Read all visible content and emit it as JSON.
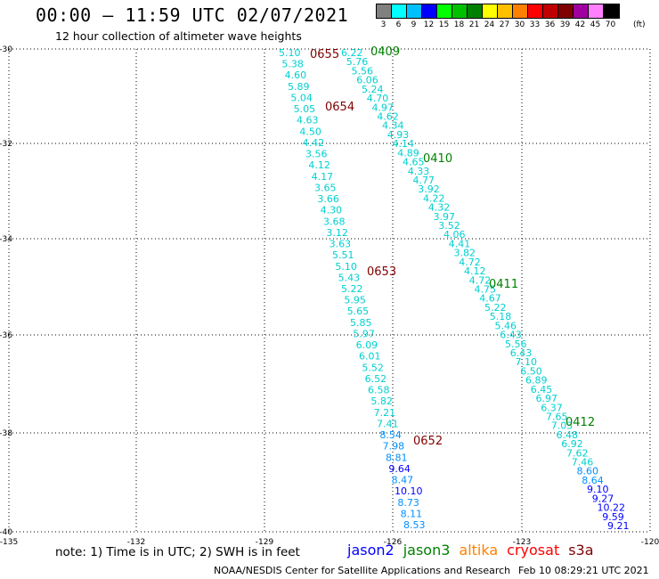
{
  "header": {
    "title": "00:00 – 11:59 UTC 02/07/2021",
    "subtitle": "12 hour collection of altimeter wave heights"
  },
  "legend": {
    "colors": [
      "#808080",
      "#00ffff",
      "#00c0ff",
      "#0000ff",
      "#00ff00",
      "#00c000",
      "#008000",
      "#ffff00",
      "#ffc000",
      "#ff8000",
      "#ff0000",
      "#c00000",
      "#800000",
      "#a000a0",
      "#ff80ff",
      "#000000"
    ],
    "labels": [
      "3",
      "6",
      "9",
      "12",
      "15",
      "18",
      "21",
      "24",
      "27",
      "30",
      "33",
      "36",
      "39",
      "42",
      "45",
      "70"
    ],
    "unit": "(ft)"
  },
  "map": {
    "lat_labels": [
      "-30",
      "-32",
      "-34",
      "-36",
      "-38",
      "-40"
    ],
    "lon_labels": [
      "-135",
      "-132",
      "-129",
      "-126",
      "-123",
      "-120"
    ]
  },
  "tracks": {
    "track_a": {
      "color": "#00d0d0",
      "values": [
        "5.10",
        "5.38",
        "4.60",
        "5.89",
        "5.04",
        "5.05",
        "4.63",
        "4.50",
        "4.42",
        "3.56",
        "4.12",
        "4.17",
        "3.65",
        "3.66",
        "4.30",
        "3.68",
        "3.12",
        "3.63",
        "5.51",
        "5.10",
        "5.43",
        "5.22",
        "5.95",
        "5.65",
        "5.85",
        "5.97",
        "6.09",
        "6.01",
        "5.52",
        "6.52",
        "6.58",
        "5.82",
        "7.21",
        "7.41",
        "8.54",
        "7.98",
        "8.81",
        "9.64",
        "8.47",
        "10.10",
        "8.73",
        "8.11",
        "8.53"
      ]
    },
    "track_b": {
      "values": [
        "6.22",
        "5.76",
        "5.56",
        "6.06",
        "5.24",
        "4.70",
        "4.97",
        "4.62",
        "4.34",
        "4.93",
        "4.14",
        "4.89",
        "4.65",
        "4.33",
        "4.77",
        "3.92",
        "4.22",
        "4.32",
        "3.97",
        "3.52",
        "4.06",
        "4.41",
        "3.82",
        "4.72",
        "4.12",
        "4.72",
        "4.75",
        "4.67",
        "5.22",
        "5.18",
        "5.46",
        "6.43",
        "5.56",
        "6.43",
        "7.10",
        "6.50",
        "6.89",
        "6.45",
        "6.97",
        "6.37",
        "7.65",
        "7.03",
        "6.48",
        "6.92",
        "7.62",
        "7.46",
        "8.60",
        "8.64",
        "9.10",
        "9.27",
        "10.22",
        "9.59",
        "9.21"
      ]
    },
    "time_labels": [
      {
        "text": "0655",
        "color": "#800000"
      },
      {
        "text": "0409",
        "color": "#008000"
      },
      {
        "text": "0654",
        "color": "#800000"
      },
      {
        "text": "0410",
        "color": "#008000"
      },
      {
        "text": "0653",
        "color": "#800000"
      },
      {
        "text": "0411",
        "color": "#008000"
      },
      {
        "text": "0412",
        "color": "#008000"
      },
      {
        "text": "0652",
        "color": "#800000"
      }
    ]
  },
  "footer": {
    "note": "note:  1) Time is in UTC;  2) SWH is in feet",
    "satellites": [
      {
        "name": "jason2",
        "color": "#0000ff"
      },
      {
        "name": "jason3",
        "color": "#008000"
      },
      {
        "name": "altika",
        "color": "#ff8000"
      },
      {
        "name": "cryosat",
        "color": "#ff0000"
      },
      {
        "name": "s3a",
        "color": "#800000"
      }
    ],
    "credit": "NOAA/NESDIS Center for Satellite Applications and Research",
    "timestamp": "Feb 10 08:29:21 UTC 2021"
  }
}
